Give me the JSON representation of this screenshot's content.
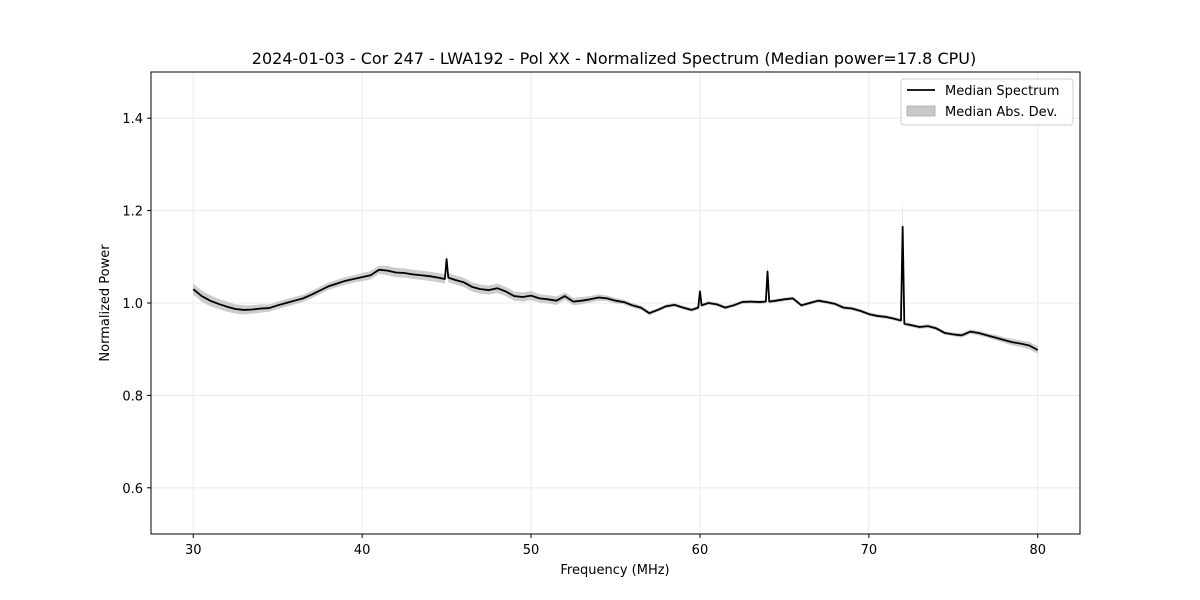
{
  "chart_data": {
    "type": "line",
    "title": "2024-01-03 - Cor 247 - LWA192 - Pol XX - Normalized Spectrum (Median power=17.8 CPU)",
    "xlabel": "Frequency (MHz)",
    "ylabel": "Normalized Power",
    "xlim": [
      27.5,
      82.5
    ],
    "ylim": [
      0.5,
      1.5
    ],
    "xticks": [
      30,
      40,
      50,
      60,
      70,
      80
    ],
    "xtick_labels": [
      "30",
      "40",
      "50",
      "60",
      "70",
      "80"
    ],
    "yticks": [
      0.6,
      0.8,
      1.0,
      1.2,
      1.4
    ],
    "ytick_labels": [
      "0.6",
      "0.8",
      "1.0",
      "1.2",
      "1.4"
    ],
    "grid": true,
    "legend_position": "top-right",
    "legend": [
      {
        "label": "Median Spectrum",
        "style": "line",
        "color": "#000000"
      },
      {
        "label": "Median Abs. Dev.",
        "style": "band",
        "color": "#c8c8c8"
      }
    ],
    "series": [
      {
        "name": "Median Spectrum",
        "color": "#000000",
        "x": [
          30.0,
          30.5,
          31.0,
          31.5,
          32.0,
          32.5,
          33.0,
          33.5,
          34.0,
          34.5,
          35.0,
          35.5,
          36.0,
          36.5,
          37.0,
          37.5,
          38.0,
          38.5,
          39.0,
          39.5,
          40.0,
          40.5,
          41.0,
          41.5,
          42.0,
          42.5,
          43.0,
          43.5,
          44.0,
          44.5,
          44.9,
          45.0,
          45.1,
          45.5,
          46.0,
          46.5,
          47.0,
          47.5,
          48.0,
          48.5,
          49.0,
          49.5,
          50.0,
          50.5,
          51.0,
          51.5,
          52.0,
          52.5,
          53.0,
          53.5,
          54.0,
          54.5,
          55.0,
          55.5,
          56.0,
          56.5,
          57.0,
          57.5,
          58.0,
          58.5,
          59.0,
          59.5,
          59.9,
          60.0,
          60.1,
          60.5,
          61.0,
          61.5,
          62.0,
          62.5,
          63.0,
          63.5,
          63.9,
          64.0,
          64.1,
          64.5,
          65.0,
          65.5,
          66.0,
          66.5,
          67.0,
          67.5,
          68.0,
          68.5,
          69.0,
          69.5,
          70.0,
          70.5,
          71.0,
          71.5,
          71.9,
          72.0,
          72.1,
          72.5,
          73.0,
          73.5,
          74.0,
          74.5,
          75.0,
          75.5,
          76.0,
          76.5,
          77.0,
          77.5,
          78.0,
          78.5,
          79.0,
          79.5,
          80.0
        ],
        "y": [
          1.03,
          1.015,
          1.005,
          0.998,
          0.992,
          0.987,
          0.985,
          0.986,
          0.988,
          0.989,
          0.995,
          1.0,
          1.005,
          1.01,
          1.018,
          1.027,
          1.036,
          1.042,
          1.048,
          1.052,
          1.056,
          1.06,
          1.072,
          1.07,
          1.066,
          1.065,
          1.062,
          1.06,
          1.058,
          1.055,
          1.052,
          1.095,
          1.055,
          1.05,
          1.045,
          1.035,
          1.03,
          1.028,
          1.032,
          1.025,
          1.015,
          1.013,
          1.016,
          1.01,
          1.008,
          1.005,
          1.015,
          1.003,
          1.005,
          1.008,
          1.012,
          1.01,
          1.005,
          1.002,
          0.995,
          0.99,
          0.978,
          0.985,
          0.993,
          0.996,
          0.99,
          0.985,
          0.99,
          1.025,
          0.995,
          1.0,
          0.997,
          0.99,
          0.995,
          1.002,
          1.003,
          1.002,
          1.003,
          1.068,
          1.003,
          1.005,
          1.008,
          1.01,
          0.995,
          1.0,
          1.005,
          1.002,
          0.998,
          0.99,
          0.988,
          0.983,
          0.976,
          0.972,
          0.97,
          0.966,
          0.962,
          1.165,
          0.955,
          0.952,
          0.948,
          0.95,
          0.945,
          0.935,
          0.932,
          0.93,
          0.938,
          0.935,
          0.93,
          0.925,
          0.92,
          0.915,
          0.912,
          0.908,
          0.898
        ]
      },
      {
        "name": "Median Abs. Dev.",
        "color": "#c8c8c8",
        "x": [
          30.0,
          30.5,
          31.0,
          31.5,
          32.0,
          32.5,
          33.0,
          33.5,
          34.0,
          34.5,
          35.0,
          35.5,
          36.0,
          36.5,
          37.0,
          37.5,
          38.0,
          38.5,
          39.0,
          39.5,
          40.0,
          40.5,
          41.0,
          41.5,
          42.0,
          42.5,
          43.0,
          43.5,
          44.0,
          44.5,
          44.9,
          45.0,
          45.1,
          45.5,
          46.0,
          46.5,
          47.0,
          47.5,
          48.0,
          48.5,
          49.0,
          49.5,
          50.0,
          50.5,
          51.0,
          51.5,
          52.0,
          52.5,
          53.0,
          53.5,
          54.0,
          54.5,
          55.0,
          55.5,
          56.0,
          56.5,
          57.0,
          57.5,
          58.0,
          58.5,
          59.0,
          59.5,
          59.9,
          60.0,
          60.1,
          60.5,
          61.0,
          61.5,
          62.0,
          62.5,
          63.0,
          63.5,
          63.9,
          64.0,
          64.1,
          64.5,
          65.0,
          65.5,
          66.0,
          66.5,
          67.0,
          67.5,
          68.0,
          68.5,
          69.0,
          69.5,
          70.0,
          70.5,
          71.0,
          71.5,
          71.9,
          72.0,
          72.1,
          72.5,
          73.0,
          73.5,
          74.0,
          74.5,
          75.0,
          75.5,
          76.0,
          76.5,
          77.0,
          77.5,
          78.0,
          78.5,
          79.0,
          79.5,
          80.0
        ],
        "dev": [
          0.012,
          0.012,
          0.012,
          0.011,
          0.011,
          0.01,
          0.01,
          0.009,
          0.009,
          0.008,
          0.008,
          0.008,
          0.008,
          0.008,
          0.008,
          0.008,
          0.008,
          0.008,
          0.008,
          0.008,
          0.009,
          0.009,
          0.009,
          0.01,
          0.01,
          0.01,
          0.01,
          0.01,
          0.01,
          0.01,
          0.01,
          0.012,
          0.01,
          0.01,
          0.01,
          0.01,
          0.01,
          0.01,
          0.01,
          0.01,
          0.01,
          0.01,
          0.01,
          0.009,
          0.009,
          0.009,
          0.008,
          0.008,
          0.008,
          0.007,
          0.007,
          0.006,
          0.006,
          0.005,
          0.005,
          0.005,
          0.005,
          0.004,
          0.004,
          0.004,
          0.004,
          0.004,
          0.004,
          0.006,
          0.004,
          0.004,
          0.004,
          0.004,
          0.004,
          0.004,
          0.004,
          0.004,
          0.004,
          0.016,
          0.004,
          0.004,
          0.004,
          0.004,
          0.004,
          0.004,
          0.004,
          0.004,
          0.004,
          0.004,
          0.004,
          0.004,
          0.004,
          0.004,
          0.004,
          0.004,
          0.004,
          0.065,
          0.004,
          0.004,
          0.004,
          0.004,
          0.004,
          0.004,
          0.004,
          0.005,
          0.005,
          0.005,
          0.005,
          0.006,
          0.006,
          0.007,
          0.007,
          0.008,
          0.008
        ]
      }
    ]
  }
}
